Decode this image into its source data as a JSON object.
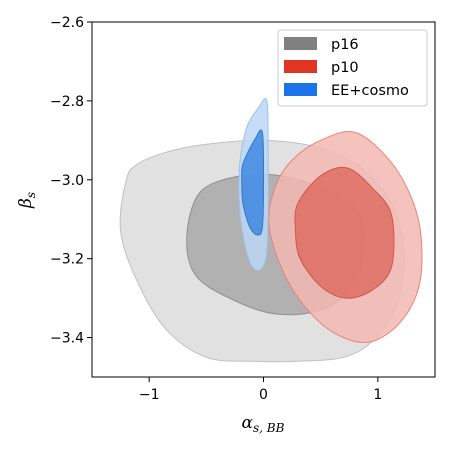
{
  "chart_data": {
    "type": "contour",
    "xlabel": "α",
    "xlabel_sub": "s, BB",
    "ylabel": "β",
    "ylabel_sub": "s",
    "xlim": [
      -1.5,
      1.5
    ],
    "ylim": [
      -3.5,
      -2.6
    ],
    "x_ticks": [
      {
        "value": -1,
        "label": "−1"
      },
      {
        "value": 0,
        "label": "0"
      },
      {
        "value": 1,
        "label": "1"
      }
    ],
    "y_ticks": [
      {
        "value": -2.6,
        "label": "−2.6"
      },
      {
        "value": -2.8,
        "label": "−2.8"
      },
      {
        "value": -3.0,
        "label": "−3.0"
      },
      {
        "value": -3.2,
        "label": "−3.2"
      },
      {
        "value": -3.4,
        "label": "−3.4"
      }
    ],
    "legend_position": "top-right",
    "series": [
      {
        "name": "p16",
        "legend_color": "#808080",
        "contours": [
          {
            "level": "outer",
            "fill": "#dcdcdc",
            "stroke": "#c0c0c0",
            "points": [
              [
                -0.85,
                -2.93
              ],
              [
                -0.5,
                -2.91
              ],
              [
                0,
                -2.9
              ],
              [
                0.5,
                -2.92
              ],
              [
                0.9,
                -2.98
              ],
              [
                1.15,
                -3.08
              ],
              [
                1.23,
                -3.2
              ],
              [
                1.15,
                -3.33
              ],
              [
                0.95,
                -3.41
              ],
              [
                0.7,
                -3.45
              ],
              [
                0.3,
                -3.46
              ],
              [
                -0.1,
                -3.46
              ],
              [
                -0.5,
                -3.45
              ],
              [
                -0.85,
                -3.38
              ],
              [
                -1.1,
                -3.26
              ],
              [
                -1.25,
                -3.13
              ],
              [
                -1.2,
                -3.0
              ],
              [
                -1.1,
                -2.96
              ]
            ]
          },
          {
            "level": "inner",
            "fill": "#a8a8a8",
            "stroke": "#909090",
            "points": [
              [
                -0.55,
                -3.03
              ],
              [
                -0.2,
                -2.99
              ],
              [
                0.15,
                -2.99
              ],
              [
                0.5,
                -3.02
              ],
              [
                0.8,
                -3.07
              ],
              [
                0.88,
                -3.16
              ],
              [
                0.78,
                -3.27
              ],
              [
                0.5,
                -3.33
              ],
              [
                0.1,
                -3.34
              ],
              [
                -0.3,
                -3.3
              ],
              [
                -0.6,
                -3.24
              ],
              [
                -0.67,
                -3.14
              ]
            ]
          }
        ]
      },
      {
        "name": "p10",
        "legend_color": "#e03524",
        "contours": [
          {
            "level": "outer",
            "fill": "#f3b8b3",
            "stroke": "#e7827a",
            "points": [
              [
                0.1,
                -3.02
              ],
              [
                0.25,
                -2.95
              ],
              [
                0.5,
                -2.9
              ],
              [
                0.8,
                -2.88
              ],
              [
                1.1,
                -2.95
              ],
              [
                1.3,
                -3.05
              ],
              [
                1.38,
                -3.15
              ],
              [
                1.36,
                -3.27
              ],
              [
                1.2,
                -3.36
              ],
              [
                0.95,
                -3.41
              ],
              [
                0.7,
                -3.4
              ],
              [
                0.45,
                -3.35
              ],
              [
                0.2,
                -3.25
              ],
              [
                0.05,
                -3.12
              ]
            ]
          },
          {
            "level": "inner",
            "fill": "#de6d61",
            "stroke": "#d0564a",
            "points": [
              [
                0.3,
                -3.06
              ],
              [
                0.5,
                -2.99
              ],
              [
                0.73,
                -2.97
              ],
              [
                0.95,
                -3.02
              ],
              [
                1.12,
                -3.09
              ],
              [
                1.12,
                -3.22
              ],
              [
                0.95,
                -3.28
              ],
              [
                0.72,
                -3.3
              ],
              [
                0.5,
                -3.27
              ],
              [
                0.32,
                -3.2
              ],
              [
                0.28,
                -3.13
              ]
            ]
          }
        ]
      },
      {
        "name": "EE+cosmo",
        "legend_color": "#1a73e8",
        "contours": [
          {
            "level": "outer",
            "fill": "#bcd7f6",
            "stroke": "#9cc1ee",
            "points": [
              [
                -0.15,
                -2.87
              ],
              [
                -0.05,
                -2.82
              ],
              [
                0.03,
                -2.8
              ],
              [
                0.04,
                -2.93
              ],
              [
                0.04,
                -3.1
              ],
              [
                0.02,
                -3.2
              ],
              [
                -0.05,
                -3.23
              ],
              [
                -0.13,
                -3.2
              ],
              [
                -0.2,
                -3.1
              ],
              [
                -0.21,
                -2.97
              ]
            ]
          },
          {
            "level": "inner",
            "fill": "#3f87e2",
            "stroke": "#3276cf",
            "points": [
              [
                -0.18,
                -2.96
              ],
              [
                -0.08,
                -2.9
              ],
              [
                -0.01,
                -2.88
              ],
              [
                0,
                -3.01
              ],
              [
                -0.01,
                -3.12
              ],
              [
                -0.05,
                -3.14
              ],
              [
                -0.12,
                -3.12
              ],
              [
                -0.18,
                -3.06
              ],
              [
                -0.19,
                -3.0
              ]
            ]
          }
        ]
      }
    ]
  }
}
